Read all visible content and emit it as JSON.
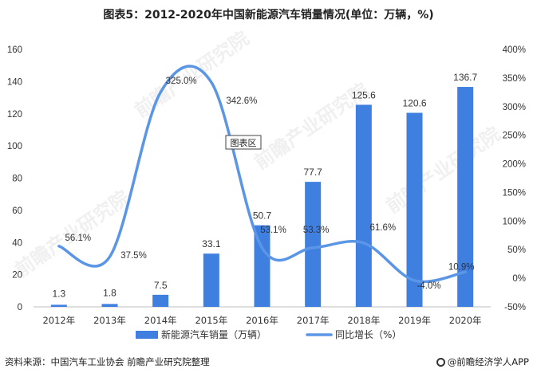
{
  "page": {
    "title": "图表5：2012-2020年中国新能源汽车销量情况(单位：万辆，%)",
    "source": "资料来源：中国汽车工业协会 前瞻产业研究院整理",
    "brand": "@前瞻经济学人APP",
    "watermark": "前瞻产业研究院",
    "plot_area_label": "图表区"
  },
  "colors": {
    "bar": "#3f7fe0",
    "line": "#5b96e6",
    "axis": "#999999",
    "text": "#333333"
  },
  "chart_data": {
    "type": "bar",
    "title": "图表5：2012-2020年中国新能源汽车销量情况(单位：万辆，%)",
    "categories": [
      "2012年",
      "2013年",
      "2014年",
      "2015年",
      "2016年",
      "2017年",
      "2018年",
      "2019年",
      "2020年"
    ],
    "series": [
      {
        "name": "新能源汽车销量（万辆）",
        "type": "bar",
        "axis": "left",
        "values": [
          1.3,
          1.8,
          7.5,
          33.1,
          50.7,
          77.7,
          125.6,
          120.6,
          136.7
        ],
        "labels": [
          "1.3",
          "1.8",
          "7.5",
          "33.1",
          "50.7",
          "77.7",
          "125.6",
          "120.6",
          "136.7"
        ]
      },
      {
        "name": "同比增长（%）",
        "type": "line",
        "axis": "right",
        "smooth": true,
        "values": [
          56.1,
          37.5,
          325.0,
          342.6,
          53.1,
          53.3,
          61.6,
          -4.0,
          10.9
        ],
        "labels": [
          "56.1%",
          "37.5%",
          "325.0%",
          "342.6%",
          "53.1%",
          "53.3%",
          "61.6%",
          "-4.0%",
          "10.9%"
        ]
      }
    ],
    "y_left": {
      "min": 0,
      "max": 160,
      "ticks": [
        "0",
        "20",
        "40",
        "60",
        "80",
        "100",
        "120",
        "140",
        "160"
      ]
    },
    "y_right": {
      "min": -50,
      "max": 400,
      "ticks": [
        "-50%",
        "0%",
        "50%",
        "100%",
        "150%",
        "200%",
        "250%",
        "300%",
        "350%",
        "400%"
      ]
    },
    "grid": false,
    "legend_position": "bottom"
  }
}
